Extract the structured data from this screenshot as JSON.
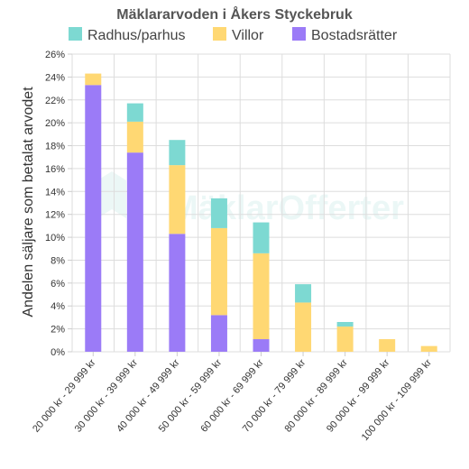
{
  "chart_data": {
    "type": "bar",
    "stacked": true,
    "title": "Mäklararvoden i Åkers Styckebruk",
    "ylabel": "Andelen säljare som betalat arvodet",
    "xlabel": "",
    "ylim": [
      0,
      26
    ],
    "yticks": [
      0,
      2,
      4,
      6,
      8,
      10,
      12,
      14,
      16,
      18,
      20,
      22,
      24,
      26
    ],
    "ytick_suffix": "%",
    "grid": true,
    "legend_position": "top",
    "categories": [
      "20 000 kr - 29 999 kr",
      "30 000 kr - 39 999 kr",
      "40 000 kr - 49 999 kr",
      "50 000 kr - 59 999 kr",
      "60 000 kr - 69 999 kr",
      "70 000 kr - 79 999 kr",
      "80 000 kr - 89 999 kr",
      "90 000 kr - 99 999 kr",
      "100 000 kr - 109 999 kr"
    ],
    "series": [
      {
        "name": "Bostadsrätter",
        "color": "#9b7bf7",
        "values": [
          23.3,
          17.4,
          10.3,
          3.2,
          1.1,
          0,
          0,
          0,
          0
        ]
      },
      {
        "name": "Villor",
        "color": "#ffd873",
        "values": [
          1.0,
          2.7,
          6.0,
          7.6,
          7.5,
          4.3,
          2.2,
          1.1,
          0.5
        ]
      },
      {
        "name": "Radhus/parhus",
        "color": "#7dd9d2",
        "values": [
          0,
          1.6,
          2.2,
          2.6,
          2.7,
          1.6,
          0.4,
          0,
          0
        ]
      }
    ],
    "legend_order": [
      "Radhus/parhus",
      "Villor",
      "Bostadsrätter"
    ]
  }
}
